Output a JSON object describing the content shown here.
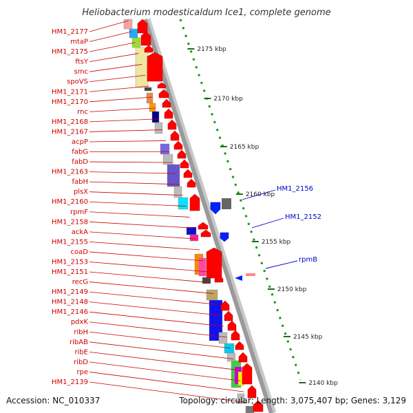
{
  "title": "Heliobacterium modesticaldum Ice1, complete genome",
  "accession": "Accession: NC_010337",
  "topology": "Topology: circular; Length: 3,075,407 bp; Genes: 3,129",
  "colors": {
    "left_label": "#cc0000",
    "right_label": "#0000cc",
    "gene_red": "#ff0000",
    "gene_blue": "#0022ff",
    "ruler_green": "#119911",
    "backbone": "#9a9a9a"
  },
  "ticks": [
    {
      "label": "2175 kbp"
    },
    {
      "label": "2170 kbp"
    },
    {
      "label": "2165 kbp"
    },
    {
      "label": "2160 kbp"
    },
    {
      "label": "2155 kbp"
    },
    {
      "label": "2150 kbp"
    },
    {
      "label": "2145 kbp"
    },
    {
      "label": "2140 kbp"
    }
  ],
  "left_labels": [
    "HM1_2177",
    "mtaP",
    "HM1_2175",
    "ftsY",
    "smc",
    "spoVS",
    "HM1_2171",
    "HM1_2170",
    "rnc",
    "HM1_2168",
    "HM1_2167",
    "acpP",
    "fabG",
    "fabD",
    "HM1_2163",
    "fabH",
    "plsX",
    "HM1_2160",
    "rpmF",
    "HM1_2158",
    "ackA",
    "HM1_2155",
    "coaD",
    "HM1_2153",
    "HM1_2151",
    "recG",
    "HM1_2149",
    "HM1_2148",
    "HM1_2146",
    "pdxK",
    "ribH",
    "ribAB",
    "ribE",
    "ribD",
    "rpe",
    "HM1_2139"
  ],
  "right_labels": [
    "HM1_2156",
    "HM1_2152",
    "rpmB"
  ]
}
